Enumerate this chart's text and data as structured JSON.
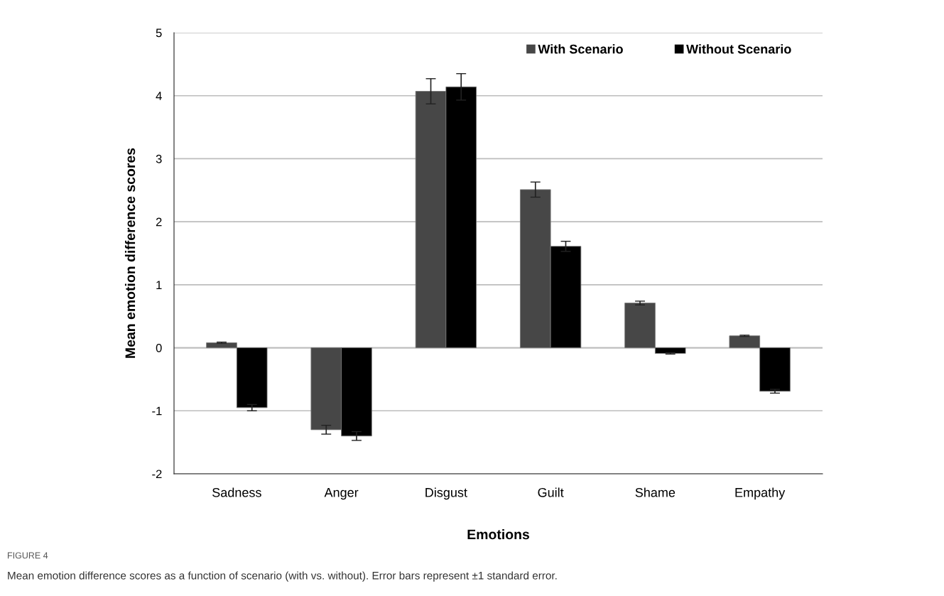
{
  "chart_data": {
    "type": "bar",
    "xlabel": "Emotions",
    "ylabel": "Mean emotion difference scores",
    "categories": [
      "Sadness",
      "Anger",
      "Disgust",
      "Guilt",
      "Shame",
      "Empathy"
    ],
    "series": [
      {
        "name": "With Scenario",
        "color": "#474747",
        "values": [
          0.08,
          -1.3,
          4.07,
          2.51,
          0.71,
          0.19
        ],
        "errors": [
          0.01,
          0.07,
          0.2,
          0.12,
          0.03,
          0.01
        ]
      },
      {
        "name": "Without Scenario",
        "color": "#000000",
        "values": [
          -0.95,
          -1.4,
          4.14,
          1.61,
          -0.09,
          -0.69
        ],
        "errors": [
          0.05,
          0.07,
          0.21,
          0.08,
          0.01,
          0.03
        ]
      }
    ],
    "ylim": [
      -2,
      5
    ],
    "yticks": [
      -2,
      -1,
      0,
      1,
      2,
      3,
      4,
      5
    ],
    "grid": "y",
    "legend": "top right",
    "annotations": [
      "FIGURE 4",
      "Mean emotion difference scores as a function of scenario (with vs. without). Error bars represent ±1 standard error."
    ]
  }
}
